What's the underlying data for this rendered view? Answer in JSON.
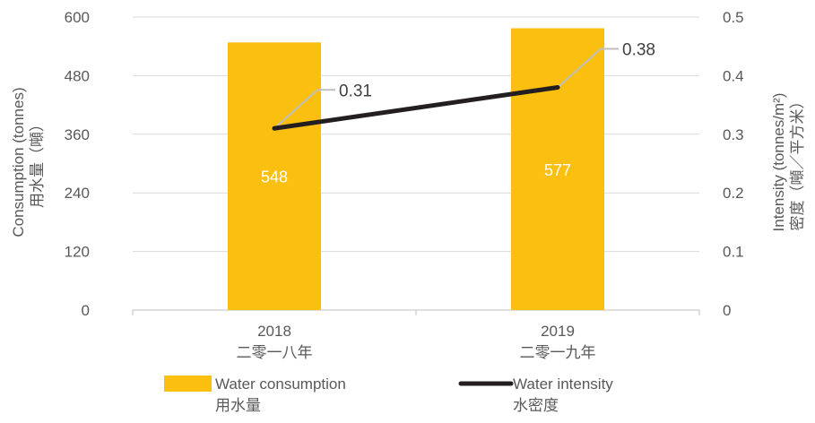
{
  "chart_data": {
    "type": "bar+line",
    "categories": [
      {
        "year": "2018",
        "chinese": "二零一八年"
      },
      {
        "year": "2019",
        "chinese": "二零一九年"
      }
    ],
    "series": [
      {
        "name": "Water consumption",
        "name_cn": "用水量",
        "type": "bar",
        "axis": "left",
        "color": "#FBBF10",
        "values": [
          548,
          577
        ],
        "value_labels": [
          "548",
          "577"
        ]
      },
      {
        "name": "Water intensity",
        "name_cn": "水密度",
        "type": "line",
        "axis": "right",
        "color": "#231F20",
        "values": [
          0.31,
          0.38
        ],
        "value_labels": [
          "0.31",
          "0.38"
        ]
      }
    ],
    "left_axis": {
      "label": "Consumption (tonnes)",
      "label_cn": "用水量（噸）",
      "ylim": [
        0,
        600
      ],
      "ticks": [
        0,
        120,
        240,
        360,
        480,
        600
      ],
      "tick_labels": [
        "0",
        "120",
        "240",
        "360",
        "480",
        "600"
      ]
    },
    "right_axis": {
      "label": "Intensity (tonnes/m²)",
      "label_cn": "密度（噸／平方米）",
      "ylim": [
        0,
        0.5
      ],
      "ticks": [
        0,
        0.1,
        0.2,
        0.3,
        0.4,
        0.5
      ],
      "tick_labels": [
        "0",
        "0.1",
        "0.2",
        "0.3",
        "0.4",
        "0.5"
      ]
    },
    "grid": true,
    "legend_position": "bottom"
  }
}
